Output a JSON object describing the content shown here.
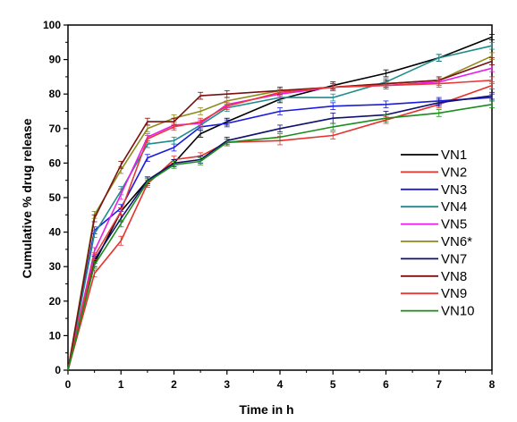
{
  "chart_data": {
    "type": "line",
    "xlabel": "Time in h",
    "ylabel": "Cumulative % drug release",
    "xlim": [
      0,
      8
    ],
    "ylim": [
      0,
      100
    ],
    "x_ticks": [
      "0",
      "1",
      "2",
      "3",
      "4",
      "5",
      "6",
      "7",
      "8"
    ],
    "y_ticks": [
      "0",
      "10",
      "20",
      "30",
      "40",
      "50",
      "60",
      "70",
      "80",
      "90",
      "100"
    ],
    "grid": false,
    "error_bars": true,
    "legend_position": "right",
    "x": [
      0,
      0.5,
      1,
      1.5,
      2,
      2.5,
      3,
      4,
      5,
      6,
      7,
      8
    ],
    "series": [
      {
        "name": "VN1",
        "color": "#000000",
        "values": [
          0,
          31,
          46,
          55,
          60,
          68.5,
          72,
          78.5,
          82.5,
          86,
          90.5,
          96.5
        ],
        "errors": [
          0,
          1,
          1,
          1,
          1,
          1,
          1,
          1,
          1,
          1,
          1,
          0.8
        ]
      },
      {
        "name": "VN2",
        "color": "#e8302a",
        "values": [
          0,
          28,
          37.5,
          54,
          61,
          62,
          66,
          66.5,
          68,
          72.5,
          77,
          82.5
        ],
        "errors": [
          0,
          1,
          1.3,
          1,
          1,
          1,
          1,
          1.2,
          1,
          1,
          1,
          1
        ]
      },
      {
        "name": "VN3",
        "color": "#1a1ae0",
        "values": [
          0,
          40.5,
          47,
          61.5,
          64.5,
          70.5,
          71.5,
          75,
          76.5,
          77,
          78,
          79
        ],
        "errors": [
          0,
          1,
          1,
          1,
          1,
          1,
          1,
          1,
          1,
          1,
          1,
          1
        ]
      },
      {
        "name": "VN4",
        "color": "#1e8c8c",
        "values": [
          0,
          39.5,
          52,
          65.5,
          66.5,
          71,
          76,
          79,
          79,
          83.5,
          90.5,
          94
        ],
        "errors": [
          0,
          1,
          1.2,
          1,
          1,
          1,
          1,
          1,
          1,
          1,
          1,
          1
        ]
      },
      {
        "name": "VN5",
        "color": "#e81ee8",
        "values": [
          0,
          34.5,
          51,
          67.5,
          71,
          71.5,
          77,
          80,
          82,
          82.5,
          83.5,
          87.5
        ],
        "errors": [
          0,
          1,
          1.5,
          1,
          1,
          1,
          1,
          1,
          1,
          1,
          1,
          1
        ]
      },
      {
        "name": "VN6*",
        "color": "#8c8c1e",
        "values": [
          0,
          45,
          58,
          70,
          73,
          75,
          78,
          81,
          82,
          83,
          84,
          91
        ],
        "errors": [
          0,
          1,
          1,
          1,
          1,
          1,
          1,
          1,
          1,
          1,
          1,
          1
        ]
      },
      {
        "name": "VN7",
        "color": "#101070",
        "values": [
          0,
          32,
          44,
          55,
          60,
          61,
          66.5,
          70,
          73,
          74,
          77.5,
          79.5
        ],
        "errors": [
          0,
          1,
          1,
          1,
          1,
          1,
          1,
          1,
          1.5,
          1,
          1,
          1
        ]
      },
      {
        "name": "VN8",
        "color": "#7a1010",
        "values": [
          0,
          44,
          59.5,
          72,
          72,
          79.5,
          80,
          81,
          82,
          83,
          84,
          89.5
        ],
        "errors": [
          0,
          1,
          1,
          1,
          1,
          1,
          1,
          1,
          1,
          1,
          1,
          1
        ]
      },
      {
        "name": "VN9",
        "color": "#e83838",
        "values": [
          0,
          33,
          46,
          67,
          70.5,
          72,
          76.5,
          80.5,
          82,
          82.5,
          83,
          84
        ],
        "errors": [
          0,
          1,
          1,
          1,
          1,
          1,
          1,
          1,
          1,
          1,
          1,
          1
        ]
      },
      {
        "name": "VN10",
        "color": "#1a8c1a",
        "values": [
          0,
          30.5,
          42.5,
          54.5,
          59.5,
          60.5,
          66,
          67.5,
          70.5,
          73,
          74.5,
          77
        ],
        "errors": [
          0,
          1,
          1,
          1,
          1,
          1,
          1,
          1,
          1,
          1,
          1,
          1
        ]
      }
    ]
  }
}
